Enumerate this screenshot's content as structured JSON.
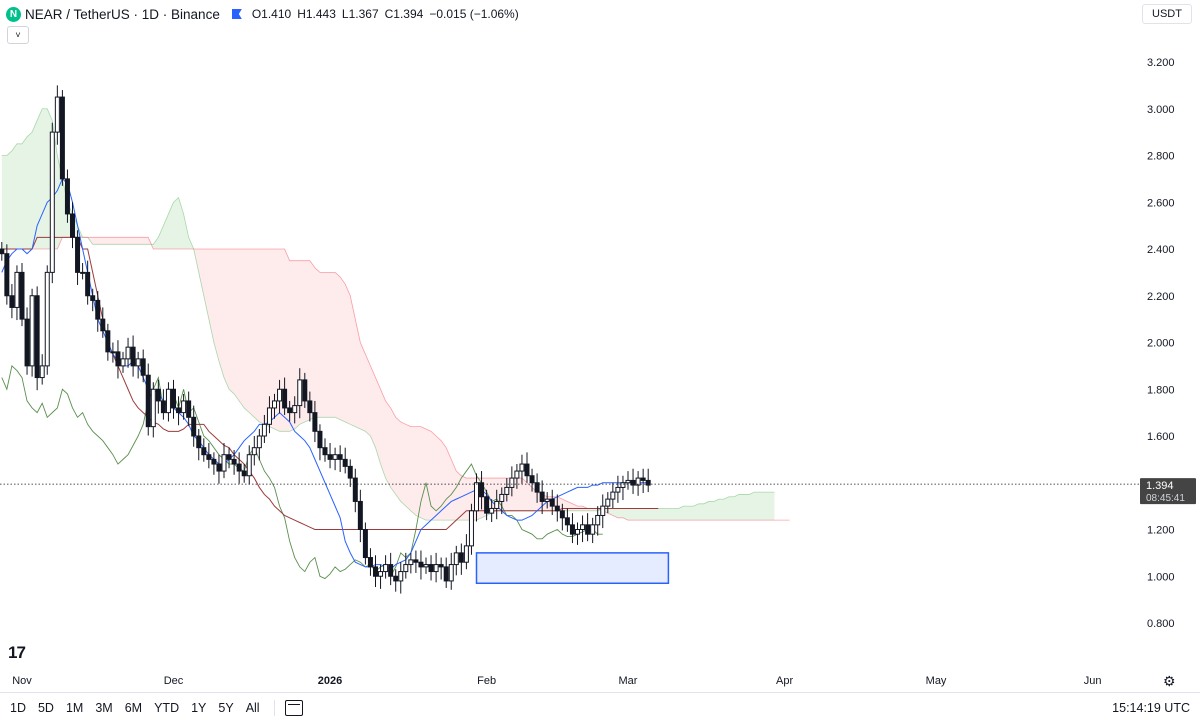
{
  "header": {
    "symbol_icon": "N",
    "title": "NEAR / TetherUS · 1D · Binance",
    "flag_icon": "flag-icon",
    "ohlc": {
      "o_label": "O",
      "o": "1.410",
      "h_label": "H",
      "h": "1.443",
      "l_label": "L",
      "l": "1.367",
      "c_label": "C",
      "c": "1.394",
      "change": "−0.015 (−1.06%)"
    }
  },
  "currency_button": "USDT",
  "collapse_icon": "˅",
  "bottom_bar": {
    "ranges": [
      "1D",
      "5D",
      "1M",
      "3M",
      "6M",
      "YTD",
      "1Y",
      "5Y",
      "All"
    ],
    "calendar_icon": "calendar-icon",
    "clock": "15:14:19 UTC"
  },
  "chart_data": {
    "type": "candlestick",
    "ylim": [
      0.7,
      3.45
    ],
    "y_ticks": [
      "3.200",
      "3.000",
      "2.800",
      "2.600",
      "2.400",
      "2.200",
      "2.000",
      "1.800",
      "1.600",
      "1.400",
      "1.200",
      "1.000",
      "0.800"
    ],
    "x_labels": [
      {
        "label": "Nov",
        "day": 0
      },
      {
        "label": "Dec",
        "day": 30
      },
      {
        "label": "2026",
        "day": 61
      },
      {
        "label": "Feb",
        "day": 92
      },
      {
        "label": "Mar",
        "day": 120
      },
      {
        "label": "Apr",
        "day": 151
      },
      {
        "label": "May",
        "day": 181
      },
      {
        "label": "Jun",
        "day": 212
      }
    ],
    "last_price": {
      "value": 1.394,
      "label": "1.394",
      "countdown": "08:45:41"
    },
    "box": {
      "day_start": 90,
      "day_end": 128,
      "low": 0.97,
      "high": 1.1
    },
    "close": [
      2.38,
      2.2,
      2.15,
      2.3,
      2.1,
      1.9,
      2.2,
      1.85,
      1.9,
      2.3,
      2.9,
      3.05,
      2.7,
      2.55,
      2.45,
      2.3,
      2.3,
      2.2,
      2.18,
      2.1,
      2.05,
      1.96,
      1.96,
      1.9,
      1.93,
      1.98,
      1.9,
      1.93,
      1.86,
      1.64,
      1.8,
      1.75,
      1.7,
      1.8,
      1.72,
      1.7,
      1.75,
      1.68,
      1.6,
      1.55,
      1.52,
      1.5,
      1.48,
      1.45,
      1.52,
      1.5,
      1.48,
      1.45,
      1.43,
      1.52,
      1.55,
      1.6,
      1.65,
      1.72,
      1.75,
      1.8,
      1.72,
      1.7,
      1.73,
      1.84,
      1.75,
      1.7,
      1.62,
      1.55,
      1.52,
      1.5,
      1.52,
      1.5,
      1.47,
      1.42,
      1.32,
      1.2,
      1.08,
      1.04,
      1.0,
      1.02,
      1.05,
      1.0,
      0.98,
      1.02,
      1.05,
      1.07,
      1.06,
      1.04,
      1.05,
      1.02,
      1.05,
      1.04,
      0.98,
      1.05,
      1.1,
      1.06,
      1.13,
      1.28,
      1.4,
      1.34,
      1.27,
      1.29,
      1.32,
      1.35,
      1.38,
      1.42,
      1.45,
      1.48,
      1.43,
      1.4,
      1.36,
      1.32,
      1.33,
      1.3,
      1.28,
      1.25,
      1.22,
      1.18,
      1.2,
      1.22,
      1.18,
      1.22,
      1.26,
      1.3,
      1.33,
      1.36,
      1.38,
      1.4,
      1.41,
      1.39,
      1.42,
      1.41,
      1.39
    ],
    "tenkan": [
      2.3,
      2.35,
      2.38,
      2.4,
      2.4,
      2.38,
      2.4,
      2.5,
      2.55,
      2.6,
      2.62,
      2.65,
      2.7,
      2.68,
      2.6,
      2.5,
      2.4,
      2.3,
      2.2,
      2.1,
      2.05,
      2.0,
      1.95,
      1.92,
      1.9,
      1.9,
      1.92,
      1.9,
      1.85,
      1.8,
      1.8,
      1.78,
      1.75,
      1.73,
      1.72,
      1.7,
      1.68,
      1.65,
      1.6,
      1.58,
      1.55,
      1.52,
      1.5,
      1.48,
      1.48,
      1.5,
      1.52,
      1.55,
      1.58,
      1.6,
      1.62,
      1.65,
      1.65,
      1.66,
      1.68,
      1.7,
      1.68,
      1.66,
      1.62,
      1.6,
      1.58,
      1.55,
      1.5,
      1.45,
      1.4,
      1.35,
      1.3,
      1.25,
      1.15,
      1.1,
      1.06,
      1.05,
      1.04,
      1.04,
      1.05,
      1.05,
      1.04,
      1.03,
      1.05,
      1.06,
      1.07,
      1.1,
      1.15,
      1.2,
      1.22,
      1.24,
      1.26,
      1.28,
      1.3,
      1.32,
      1.33,
      1.34,
      1.35,
      1.36,
      1.37,
      1.37,
      1.35,
      1.32,
      1.3,
      1.28,
      1.26,
      1.25,
      1.24,
      1.24,
      1.25,
      1.26,
      1.28,
      1.3,
      1.32,
      1.33,
      1.34,
      1.35,
      1.36,
      1.37,
      1.38,
      1.38,
      1.38,
      1.39,
      1.39,
      1.4,
      1.4,
      1.4,
      1.4,
      1.4,
      1.4,
      1.4,
      1.4,
      1.4,
      1.4
    ],
    "kijun": [
      2.4,
      2.4,
      2.4,
      2.4,
      2.4,
      2.4,
      2.4,
      2.45,
      2.45,
      2.45,
      2.45,
      2.45,
      2.45,
      2.45,
      2.45,
      2.45,
      2.4,
      2.4,
      2.3,
      2.2,
      2.1,
      2.0,
      1.95,
      1.9,
      1.85,
      1.8,
      1.75,
      1.72,
      1.7,
      1.68,
      1.66,
      1.65,
      1.63,
      1.62,
      1.62,
      1.62,
      1.63,
      1.65,
      1.65,
      1.65,
      1.65,
      1.62,
      1.6,
      1.58,
      1.56,
      1.55,
      1.52,
      1.5,
      1.48,
      1.45,
      1.42,
      1.38,
      1.35,
      1.33,
      1.3,
      1.28,
      1.26,
      1.25,
      1.24,
      1.23,
      1.22,
      1.21,
      1.2,
      1.2,
      1.2,
      1.2,
      1.2,
      1.2,
      1.2,
      1.2,
      1.2,
      1.2,
      1.2,
      1.2,
      1.2,
      1.2,
      1.2,
      1.2,
      1.2,
      1.2,
      1.2,
      1.2,
      1.2,
      1.2,
      1.2,
      1.2,
      1.2,
      1.2,
      1.2,
      1.22,
      1.24,
      1.26,
      1.28,
      1.28,
      1.28,
      1.28,
      1.28,
      1.28,
      1.28,
      1.28,
      1.28,
      1.28,
      1.28,
      1.28,
      1.28,
      1.28,
      1.28,
      1.28,
      1.28,
      1.28,
      1.28,
      1.29,
      1.29,
      1.29,
      1.29,
      1.29,
      1.29,
      1.29,
      1.29,
      1.29,
      1.29,
      1.29,
      1.29,
      1.29,
      1.29,
      1.29,
      1.29,
      1.29,
      1.29,
      1.29,
      1.29
    ],
    "span_a": [
      2.8,
      2.8,
      2.82,
      2.85,
      2.85,
      2.88,
      2.9,
      2.95,
      3.0,
      3.0,
      2.95,
      2.8,
      2.7,
      2.6,
      2.55,
      2.5,
      2.45,
      2.45,
      2.42,
      2.42,
      2.42,
      2.42,
      2.42,
      2.42,
      2.42,
      2.42,
      2.42,
      2.42,
      2.42,
      2.42,
      2.42,
      2.45,
      2.5,
      2.55,
      2.6,
      2.62,
      2.55,
      2.45,
      2.4,
      2.3,
      2.2,
      2.1,
      2.0,
      1.92,
      1.85,
      1.8,
      1.78,
      1.75,
      1.72,
      1.7,
      1.68,
      1.66,
      1.65,
      1.64,
      1.63,
      1.62,
      1.62,
      1.62,
      1.63,
      1.65,
      1.66,
      1.67,
      1.68,
      1.68,
      1.68,
      1.68,
      1.68,
      1.67,
      1.66,
      1.65,
      1.64,
      1.63,
      1.62,
      1.6,
      1.55,
      1.48,
      1.42,
      1.38,
      1.35,
      1.32,
      1.3,
      1.28,
      1.26,
      1.25,
      1.24,
      1.24,
      1.24,
      1.24,
      1.24,
      1.24,
      1.24,
      1.24,
      1.24,
      1.24,
      1.24,
      1.25,
      1.26,
      1.27,
      1.28,
      1.28,
      1.28,
      1.28,
      1.28,
      1.28,
      1.28,
      1.28,
      1.28,
      1.28,
      1.28,
      1.28,
      1.28,
      1.28,
      1.28,
      1.28,
      1.28,
      1.28,
      1.28,
      1.28,
      1.28,
      1.29,
      1.29,
      1.29,
      1.29,
      1.29,
      1.29,
      1.29,
      1.29,
      1.29,
      1.29,
      1.29,
      1.29,
      1.29,
      1.29,
      1.29,
      1.29,
      1.3,
      1.3,
      1.3,
      1.31,
      1.31,
      1.32,
      1.32,
      1.33,
      1.33,
      1.34,
      1.34,
      1.35,
      1.35,
      1.35,
      1.36,
      1.36,
      1.36,
      1.36,
      1.36
    ],
    "span_b": [
      2.4,
      2.4,
      2.4,
      2.4,
      2.4,
      2.4,
      2.4,
      2.4,
      2.4,
      2.4,
      2.4,
      2.4,
      2.45,
      2.45,
      2.45,
      2.45,
      2.45,
      2.45,
      2.45,
      2.45,
      2.45,
      2.45,
      2.45,
      2.45,
      2.45,
      2.45,
      2.45,
      2.45,
      2.45,
      2.45,
      2.4,
      2.4,
      2.4,
      2.4,
      2.4,
      2.4,
      2.4,
      2.4,
      2.4,
      2.4,
      2.4,
      2.4,
      2.4,
      2.4,
      2.4,
      2.4,
      2.4,
      2.4,
      2.4,
      2.4,
      2.4,
      2.4,
      2.4,
      2.4,
      2.4,
      2.4,
      2.4,
      2.35,
      2.35,
      2.35,
      2.35,
      2.35,
      2.32,
      2.3,
      2.3,
      2.3,
      2.3,
      2.28,
      2.25,
      2.2,
      2.1,
      2.0,
      1.95,
      1.9,
      1.85,
      1.8,
      1.75,
      1.72,
      1.68,
      1.66,
      1.65,
      1.64,
      1.64,
      1.64,
      1.63,
      1.62,
      1.6,
      1.58,
      1.55,
      1.5,
      1.45,
      1.43,
      1.42,
      1.42,
      1.42,
      1.42,
      1.42,
      1.42,
      1.42,
      1.42,
      1.42,
      1.42,
      1.42,
      1.42,
      1.4,
      1.38,
      1.36,
      1.35,
      1.34,
      1.34,
      1.34,
      1.33,
      1.32,
      1.31,
      1.3,
      1.3,
      1.29,
      1.29,
      1.29,
      1.28,
      1.27,
      1.26,
      1.25,
      1.25,
      1.24,
      1.24,
      1.24,
      1.24,
      1.24,
      1.24,
      1.24,
      1.24,
      1.24,
      1.24,
      1.24,
      1.24,
      1.24,
      1.24,
      1.24,
      1.24,
      1.24,
      1.24,
      1.24,
      1.24,
      1.24,
      1.24,
      1.24,
      1.24,
      1.24,
      1.24,
      1.24,
      1.24,
      1.24,
      1.24,
      1.24,
      1.24,
      1.24
    ],
    "chikou": [
      1.85,
      1.8,
      1.9,
      1.88,
      1.85,
      1.75,
      1.72,
      1.7,
      1.74,
      1.68,
      1.7,
      1.72,
      1.8,
      1.78,
      1.72,
      1.68,
      1.7,
      1.65,
      1.62,
      1.6,
      1.58,
      1.55,
      1.52,
      1.48,
      1.5,
      1.52,
      1.56,
      1.6,
      1.65,
      1.75,
      1.8,
      1.85,
      1.72,
      1.75,
      1.78,
      1.72,
      1.8,
      1.7,
      1.72,
      1.66,
      1.6,
      1.58,
      1.55,
      1.52,
      1.5,
      1.48,
      1.48,
      1.46,
      1.45,
      1.52,
      1.55,
      1.5,
      1.45,
      1.42,
      1.38,
      1.3,
      1.25,
      1.15,
      1.08,
      1.04,
      1.02,
      1.06,
      1.08,
      1.0,
      0.99,
      1.01,
      1.04,
      1.02,
      1.03,
      1.05,
      1.07,
      1.06,
      1.04,
      1.05,
      1.02,
      1.04,
      1.05,
      1.0,
      1.04,
      1.1,
      1.08,
      1.1,
      1.2,
      1.32,
      1.4,
      1.3,
      1.28,
      1.3,
      1.33,
      1.35,
      1.38,
      1.42,
      1.45,
      1.48,
      1.43,
      1.4,
      1.36,
      1.32,
      1.33,
      1.3,
      1.26,
      1.26,
      1.24,
      1.2,
      1.19,
      1.18,
      1.16,
      1.16,
      1.18,
      1.19,
      1.2,
      1.18,
      1.17,
      1.17,
      1.18,
      1.19,
      1.2,
      1.2,
      1.18,
      1.18
    ]
  }
}
